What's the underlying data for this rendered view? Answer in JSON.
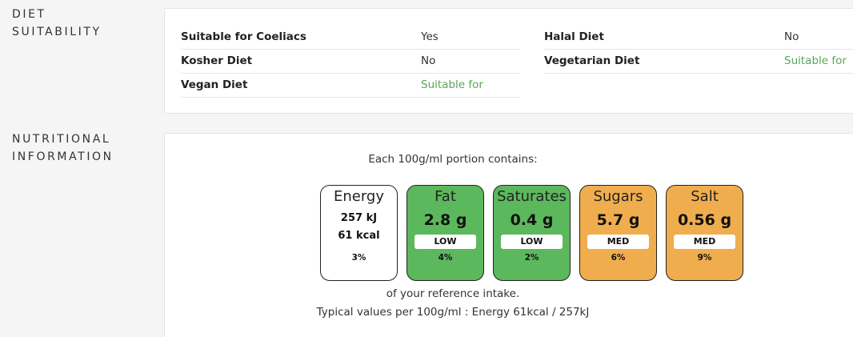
{
  "sections": {
    "diet_label_line1": "DIET",
    "diet_label_line2": "SUITABILITY",
    "nutrition_label_line1": "NUTRITIONAL",
    "nutrition_label_line2": "INFORMATION"
  },
  "diet": {
    "left": [
      {
        "name": "Suitable for Coeliacs",
        "value": "Yes",
        "status": "plain"
      },
      {
        "name": "Kosher Diet",
        "value": "No",
        "status": "plain"
      },
      {
        "name": "Vegan Diet",
        "value": "Suitable for",
        "status": "ok"
      }
    ],
    "right": [
      {
        "name": "Halal Diet",
        "value": "No",
        "status": "plain"
      },
      {
        "name": "Vegetarian Diet",
        "value": "Suitable for",
        "status": "ok"
      }
    ],
    "ok_color": "#5aa55a"
  },
  "nutrition": {
    "portion_text": "Each 100g/ml portion contains:",
    "reference_text": "of your reference intake.",
    "typical_text": "Typical values per 100g/ml : Energy 61kcal / 257kJ",
    "energy": {
      "name": "Energy",
      "kj": "257 kJ",
      "kcal": "61 kcal",
      "pct": "3%",
      "color": "#ffffff"
    },
    "tiles": [
      {
        "name": "Fat",
        "amount": "2.8 g",
        "level": "LOW",
        "pct": "4%",
        "color": "#5cb85c"
      },
      {
        "name": "Saturates",
        "amount": "0.4 g",
        "level": "LOW",
        "pct": "2%",
        "color": "#5cb85c"
      },
      {
        "name": "Sugars",
        "amount": "5.7 g",
        "level": "MED",
        "pct": "6%",
        "color": "#f0ad4e"
      },
      {
        "name": "Salt",
        "amount": "0.56 g",
        "level": "MED",
        "pct": "9%",
        "color": "#f0ad4e"
      }
    ]
  }
}
